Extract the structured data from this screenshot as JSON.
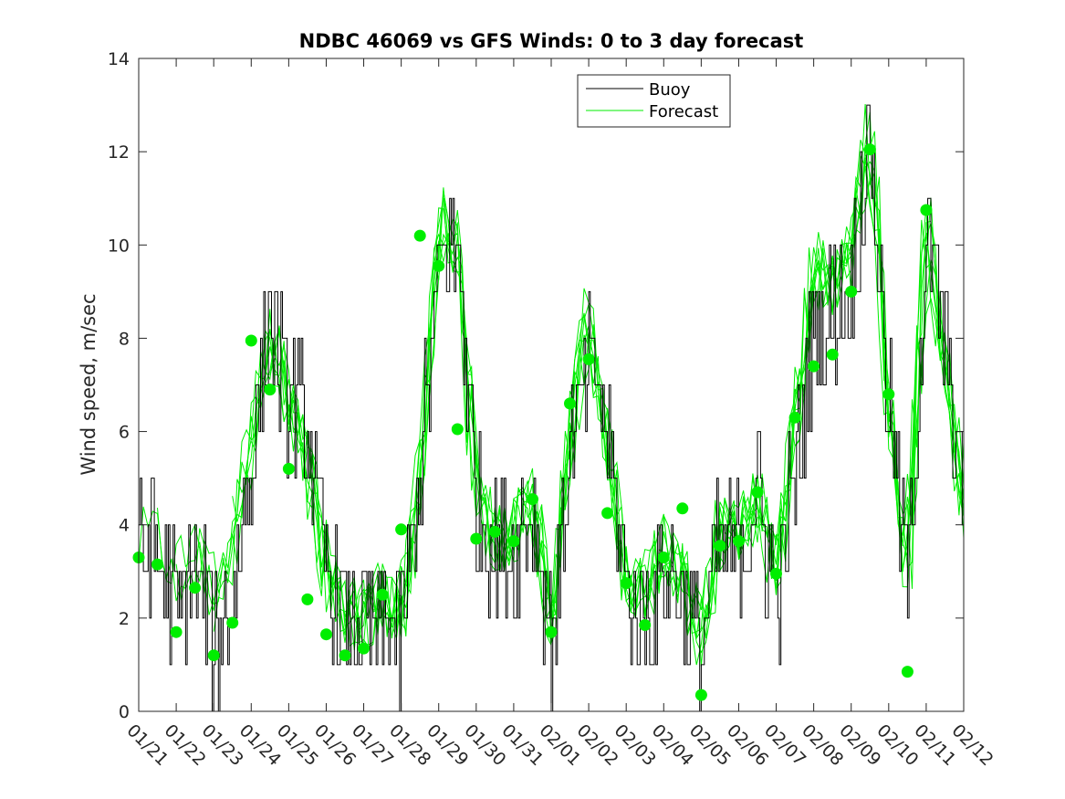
{
  "chart_data": {
    "type": "line",
    "title": "NDBC 46069 vs GFS Winds: 0 to 3 day forecast",
    "xlabel": "",
    "ylabel": "Wind speed, m/sec",
    "ylim": [
      0,
      14
    ],
    "yticks": [
      0,
      2,
      4,
      6,
      8,
      10,
      12,
      14
    ],
    "xlim": [
      0,
      22
    ],
    "x_tick_labels": [
      "01/21",
      "01/22",
      "01/23",
      "01/24",
      "01/25",
      "01/26",
      "01/27",
      "01/28",
      "01/29",
      "01/30",
      "01/31",
      "02/01",
      "02/02",
      "02/03",
      "02/04",
      "02/05",
      "02/06",
      "02/07",
      "02/08",
      "02/09",
      "02/10",
      "02/11",
      "02/12"
    ],
    "legend": {
      "position": "top-center",
      "entries": [
        "Buoy",
        "Forecast"
      ]
    },
    "colors": {
      "buoy": "#000000",
      "forecast": "#00ee00",
      "markers": "#00ee00",
      "axes": "#262626"
    },
    "series": [
      {
        "name": "Buoy",
        "note": "daily anchor values of observed buoy wind speed (days since 01/21)",
        "x": [
          0,
          0.5,
          1,
          1.5,
          2,
          2.5,
          3,
          3.5,
          4,
          4.5,
          5,
          5.5,
          6,
          6.5,
          7,
          7.5,
          8,
          8.5,
          9,
          9.5,
          10,
          10.5,
          11,
          11.5,
          12,
          12.5,
          13,
          13.5,
          14,
          14.5,
          15,
          15.5,
          16,
          16.5,
          17,
          17.5,
          18,
          18.5,
          19,
          19.5,
          20,
          20.5,
          21,
          21.5,
          22
        ],
        "values": [
          3.3,
          3.5,
          2.0,
          3.0,
          1.5,
          2.5,
          5.5,
          8.5,
          6.5,
          6.0,
          3.0,
          2.0,
          2.0,
          2.0,
          1.5,
          5.0,
          9.5,
          10.0,
          4.5,
          3.5,
          3.5,
          4.5,
          1.5,
          5.5,
          7.5,
          6.0,
          2.5,
          2.0,
          3.0,
          2.5,
          1.5,
          3.5,
          3.5,
          4.5,
          2.5,
          5.0,
          8.0,
          8.5,
          9.0,
          12.5,
          6.5,
          2.5,
          10.0,
          8.0,
          4.0
        ]
      },
      {
        "name": "Forecast",
        "note": "representative central forecast curve; multiple overlapping forecast runs are drawn as perturbations",
        "x": [
          0,
          0.5,
          1,
          1.5,
          2,
          2.5,
          3,
          3.5,
          4,
          4.5,
          5,
          5.5,
          6,
          6.5,
          7,
          7.5,
          8,
          8.5,
          9,
          9.5,
          10,
          10.5,
          11,
          11.5,
          12,
          12.5,
          13,
          13.5,
          14,
          14.5,
          15,
          15.5,
          16,
          16.5,
          17,
          17.5,
          18,
          18.5,
          19,
          19.5,
          20,
          20.5,
          21,
          21.5,
          22
        ],
        "values": [
          3.5,
          3.8,
          3.0,
          3.5,
          2.5,
          3.5,
          6.0,
          8.0,
          6.8,
          5.5,
          3.0,
          2.2,
          2.0,
          2.5,
          2.0,
          5.0,
          10.5,
          10.0,
          4.5,
          3.8,
          3.8,
          4.5,
          2.0,
          6.0,
          8.5,
          5.5,
          2.8,
          2.5,
          3.5,
          3.0,
          1.5,
          3.8,
          3.8,
          4.5,
          3.0,
          6.0,
          9.5,
          9.0,
          10.0,
          12.5,
          6.5,
          3.0,
          10.5,
          7.5,
          4.5
        ]
      }
    ],
    "markers": {
      "name": "Forecast (daily points)",
      "x": [
        0,
        0.5,
        1,
        1.5,
        2,
        2.5,
        3,
        3.5,
        4,
        4.5,
        5,
        5.5,
        6,
        6.5,
        7,
        7.5,
        8,
        8.5,
        9,
        9.5,
        10,
        10.5,
        11,
        11.5,
        12,
        12.5,
        13,
        13.5,
        14,
        14.5,
        15,
        15.5,
        16,
        16.5,
        17,
        17.5,
        18,
        18.5,
        19,
        19.5,
        20,
        20.5,
        21
      ],
      "values": [
        3.3,
        3.15,
        1.7,
        2.65,
        1.2,
        1.9,
        7.95,
        6.9,
        5.2,
        2.4,
        1.65,
        1.2,
        1.35,
        2.5,
        3.9,
        10.2,
        9.55,
        6.05,
        3.7,
        3.85,
        3.65,
        4.55,
        1.7,
        6.6,
        7.55,
        4.25,
        2.75,
        1.85,
        3.3,
        4.35,
        0.35,
        3.55,
        3.65,
        4.7,
        2.95,
        6.3,
        7.4,
        7.65,
        9.0,
        12.05,
        6.8,
        0.85,
        10.75
      ]
    }
  }
}
